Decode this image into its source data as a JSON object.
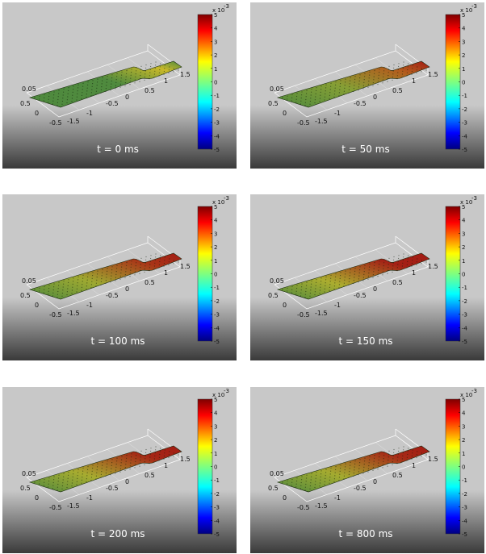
{
  "panels": [
    {
      "time_label": "t = 0 ms",
      "heat": 0.0
    },
    {
      "time_label": "t = 50 ms",
      "heat": 0.45
    },
    {
      "time_label": "t = 100 ms",
      "heat": 0.65
    },
    {
      "time_label": "t = 150 ms",
      "heat": 0.75
    },
    {
      "time_label": "t = 200 ms",
      "heat": 0.72
    },
    {
      "time_label": "t = 800 ms",
      "heat": 0.7
    }
  ],
  "colorbar": {
    "multiplier": "x 10",
    "exponent": "-3",
    "ticks": [
      "5",
      "4",
      "3",
      "2",
      "1",
      "0",
      "-1",
      "-2",
      "-3",
      "-4",
      "-5"
    ]
  },
  "axes": {
    "z_tick": "0.05",
    "left_ticks": [
      "0.5",
      "0",
      "-0.5"
    ],
    "front_ticks": [
      "-1.5",
      "-1",
      "-0.5",
      "0",
      "0.5",
      "1",
      "1.5"
    ]
  },
  "colors": {
    "cold": "#4f8a3e",
    "warm_mid": "#c9b92a",
    "hot": "#a31c14",
    "background_top": "#c8c8c8",
    "background_bottom": "#3a3a3a"
  }
}
